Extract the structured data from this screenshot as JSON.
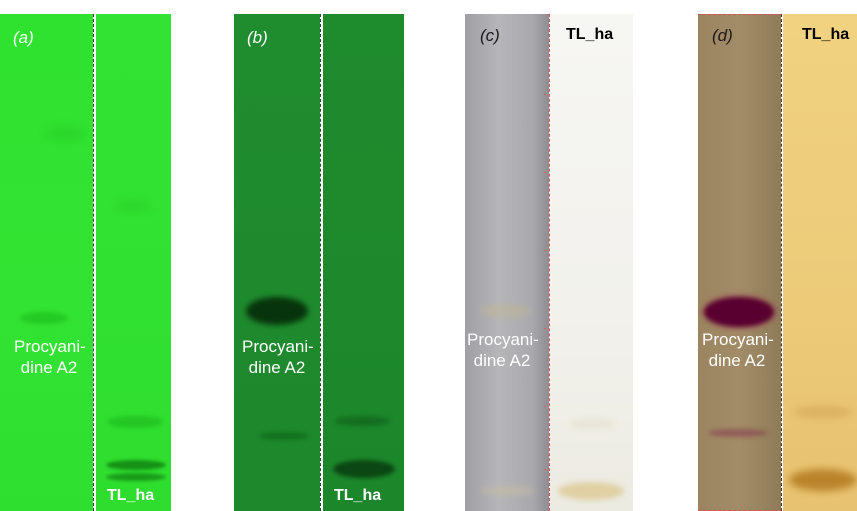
{
  "panels": [
    {
      "letter": "(a)",
      "left_label": "Procyani-\ndine A2",
      "right_label": "TL_ha"
    },
    {
      "letter": "(b)",
      "left_label": "Procyani-\ndine A2",
      "right_label": "TL_ha"
    },
    {
      "letter": "(c)",
      "left_label": "Procyani-\ndine A2",
      "right_label": "TL_ha"
    },
    {
      "letter": "(d)",
      "left_label": "Procyani-\ndine A2",
      "right_label": "TL_ha"
    }
  ],
  "colors": {
    "panel_a_background": "#33e333",
    "panel_b_background": "#1e8a2d",
    "panel_c_left_background": "#a9a9ad",
    "panel_c_right_background": "#f2f1ec",
    "panel_d_left_background": "#9b8560",
    "panel_d_right_background": "#ecca78",
    "panel_d_band": "#5a0030"
  }
}
